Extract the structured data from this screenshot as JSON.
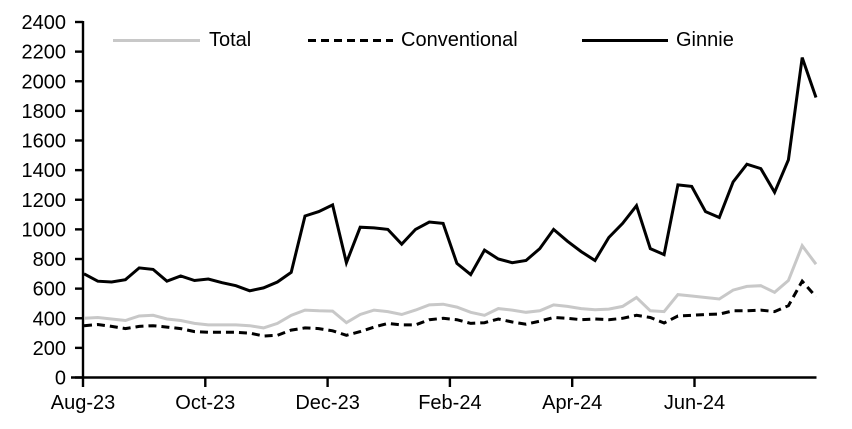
{
  "figure": {
    "background_color": "#ffffff",
    "text_color": "#000000",
    "axis_color": "#000000"
  },
  "legend": {
    "items": [
      {
        "label": "Total",
        "color": "#c8c8c8",
        "line_style": "solid"
      },
      {
        "label": "Conventional",
        "color": "#000000",
        "line_style": "dashed"
      },
      {
        "label": "Ginnie",
        "color": "#000000",
        "line_style": "solid"
      }
    ]
  },
  "chart_data": {
    "type": "line",
    "title": "",
    "xlabel": "",
    "ylabel": "",
    "grid": false,
    "legend_position": "top",
    "x_unit": "weekly observations, late Jul-23 through mid Aug-24",
    "n_points": 54,
    "x_tick_labels": [
      "Aug-23",
      "Oct-23",
      "Dec-23",
      "Feb-24",
      "Apr-24",
      "Jun-24"
    ],
    "ylim": [
      0,
      2400
    ],
    "ytick_step": 200,
    "ytick_labels": [
      "0",
      "200",
      "400",
      "600",
      "800",
      "1000",
      "1200",
      "1400",
      "1600",
      "1800",
      "2000",
      "2200",
      "2400"
    ],
    "series": [
      {
        "name": "Total",
        "color": "#c8c8c8",
        "dash": null,
        "values": [
          400,
          405,
          395,
          385,
          415,
          420,
          395,
          385,
          365,
          355,
          355,
          355,
          350,
          335,
          365,
          420,
          455,
          450,
          448,
          370,
          425,
          455,
          445,
          425,
          455,
          490,
          495,
          475,
          440,
          420,
          465,
          455,
          440,
          450,
          490,
          480,
          465,
          458,
          462,
          480,
          540,
          450,
          445,
          560,
          550,
          540,
          530,
          590,
          615,
          620,
          575,
          655,
          890,
          765
        ]
      },
      {
        "name": "Conventional",
        "color": "#000000",
        "dash": [
          8,
          5
        ],
        "values": [
          350,
          358,
          345,
          330,
          345,
          350,
          340,
          330,
          310,
          305,
          305,
          305,
          300,
          280,
          285,
          320,
          335,
          330,
          315,
          285,
          310,
          340,
          365,
          355,
          355,
          390,
          400,
          390,
          365,
          370,
          395,
          375,
          360,
          380,
          405,
          400,
          390,
          395,
          390,
          400,
          420,
          405,
          368,
          415,
          420,
          425,
          428,
          450,
          450,
          455,
          445,
          485,
          650,
          545
        ]
      },
      {
        "name": "Ginnie",
        "color": "#000000",
        "dash": null,
        "values": [
          700,
          650,
          645,
          660,
          740,
          730,
          650,
          685,
          655,
          665,
          640,
          620,
          585,
          605,
          645,
          710,
          1090,
          1120,
          1165,
          775,
          1015,
          1010,
          1000,
          900,
          1000,
          1050,
          1040,
          770,
          695,
          860,
          800,
          775,
          790,
          870,
          1000,
          920,
          850,
          790,
          945,
          1040,
          1160,
          870,
          830,
          1300,
          1290,
          1120,
          1080,
          1320,
          1440,
          1410,
          1250,
          1470,
          2160,
          1890
        ]
      }
    ]
  }
}
